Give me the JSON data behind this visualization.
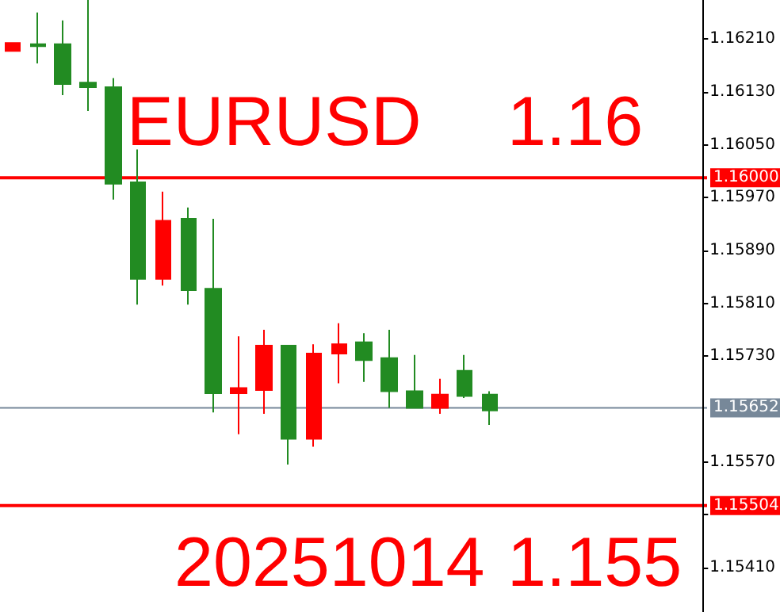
{
  "chart_data": {
    "type": "candlestick",
    "categories": [
      null,
      null,
      null,
      null,
      null,
      null,
      null,
      null,
      null,
      null,
      null,
      null,
      null,
      null,
      null,
      null,
      null,
      null,
      null,
      null,
      null,
      null,
      null,
      null,
      null,
      null,
      null,
      null
    ],
    "ohlc": [
      [
        1.16192,
        1.16204,
        1.16192,
        1.16204
      ],
      [
        1.16199,
        1.1625,
        1.16173,
        1.16202
      ],
      [
        1.16202,
        1.16238,
        1.16125,
        1.16142
      ],
      [
        1.16144,
        1.16269,
        1.16101,
        1.16137
      ],
      [
        1.16137,
        1.16151,
        1.15967,
        1.15991
      ],
      [
        1.15993,
        1.16043,
        1.15808,
        1.15847
      ],
      [
        1.15847,
        1.15979,
        1.15837,
        1.15935
      ],
      [
        1.15938,
        1.15955,
        1.15808,
        1.1583
      ],
      [
        1.15832,
        1.15938,
        1.15645,
        1.15674
      ],
      [
        1.15674,
        1.1576,
        1.15612,
        1.15682
      ],
      [
        1.15679,
        1.1577,
        1.15643,
        1.15746
      ],
      [
        1.15746,
        1.15746,
        1.15566,
        1.15605
      ],
      [
        1.15605,
        1.15748,
        1.15593,
        1.15734
      ],
      [
        1.15734,
        1.1578,
        1.15689,
        1.15748
      ],
      [
        1.15751,
        1.15765,
        1.15691,
        1.15724
      ],
      [
        1.15727,
        1.1577,
        1.15652,
        1.15677
      ],
      [
        1.15677,
        1.15732,
        1.15652,
        1.15652
      ],
      [
        1.15652,
        1.15696,
        1.15643,
        1.15672
      ],
      [
        1.15708,
        1.15732,
        1.15667,
        1.1567
      ],
      [
        1.15672,
        1.15677,
        1.15626,
        1.15648
      ],
      null,
      null,
      null,
      null,
      null,
      null,
      null,
      null
    ],
    "colors": [
      "#ff0000",
      "#228b22",
      "#228b22",
      "#228b22",
      "#228b22",
      "#228b22",
      "#ff0000",
      "#228b22",
      "#228b22",
      "#ff0000",
      "#ff0000",
      "#228b22",
      "#ff0000",
      "#ff0000",
      "#228b22",
      "#228b22",
      "#228b22",
      "#ff0000",
      "#228b22",
      "#228b22",
      null,
      null,
      null,
      null,
      null,
      null,
      null,
      null
    ],
    "ylim": [
      1.15343,
      1.16269
    ],
    "yticks": [
      {
        "value": 1.1621,
        "label": "1.16210"
      },
      {
        "value": 1.1613,
        "label": "1.16130"
      },
      {
        "value": 1.1605,
        "label": "1.16050"
      },
      {
        "value": 1.1597,
        "label": "1.15970"
      },
      {
        "value": 1.1589,
        "label": "1.15890"
      },
      {
        "value": 1.1581,
        "label": "1.15810"
      },
      {
        "value": 1.1573,
        "label": "1.15730"
      },
      {
        "value": 1.1557,
        "label": "1.15570"
      },
      {
        "value": 1.1549,
        "label": null
      },
      {
        "value": 1.1541,
        "label": "1.15410"
      }
    ],
    "ref_lines": [
      {
        "axis": "y",
        "value": 1.16,
        "label": "1.16000",
        "color": "#ff0000"
      },
      {
        "axis": "y",
        "value": 1.15504,
        "label": "1.15504",
        "color": "#ff0000"
      },
      {
        "axis": "y",
        "value": 1.15652,
        "label": "1.15652",
        "color": "#778899"
      }
    ],
    "annotations": [
      "EURUSD",
      "1.16",
      "20251014",
      "1.155"
    ],
    "grid": false
  }
}
